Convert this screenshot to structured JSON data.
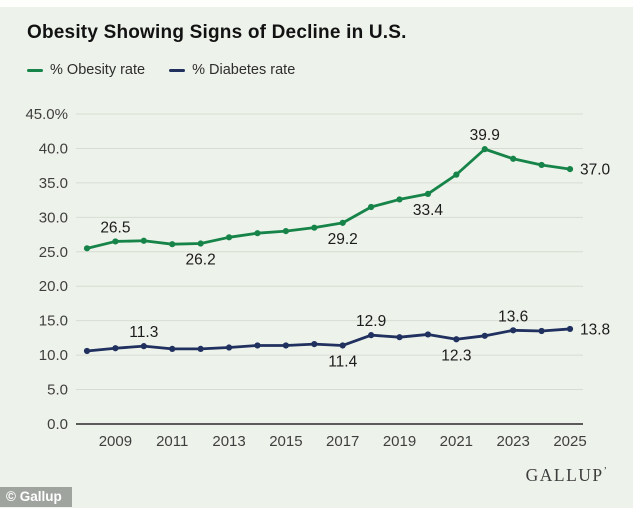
{
  "title": "Obesity Showing Signs of Decline in U.S.",
  "legend": {
    "items": [
      {
        "label": "% Obesity rate",
        "color": "#168449"
      },
      {
        "label": "% Diabetes rate",
        "color": "#20305f"
      }
    ]
  },
  "footer": {
    "wordmark": "GALLUP",
    "wordmark_tick": "’",
    "credit": "© Gallup"
  },
  "colors": {
    "background": "#edf2ea",
    "grid": "#d8ddd3",
    "baseline": "#2b2b2b",
    "axis_text": "#3f3f3f",
    "label_text": "#1c1c1c",
    "obesity_green": "#168449",
    "diabetes_navy": "#20305f"
  },
  "chart_data": {
    "type": "line",
    "title": "Obesity Showing Signs of Decline in U.S.",
    "xlabel": "",
    "ylabel": "",
    "grid": true,
    "legend_position": "top-left",
    "marker": "circle",
    "ylim": [
      0,
      45
    ],
    "x": [
      2008,
      2009,
      2010,
      2011,
      2012,
      2013,
      2014,
      2015,
      2016,
      2017,
      2018,
      2019,
      2020,
      2021,
      2022,
      2023,
      2024,
      2025
    ],
    "x_ticks": [
      2009,
      2011,
      2013,
      2015,
      2017,
      2019,
      2021,
      2023,
      2025
    ],
    "y_ticks": [
      {
        "value": 45,
        "label": "45.0%"
      },
      {
        "value": 40,
        "label": "40.0"
      },
      {
        "value": 35,
        "label": "35.0"
      },
      {
        "value": 30,
        "label": "30.0"
      },
      {
        "value": 25,
        "label": "25.0"
      },
      {
        "value": 20,
        "label": "20.0"
      },
      {
        "value": 15,
        "label": "15.0"
      },
      {
        "value": 10,
        "label": "10.0"
      },
      {
        "value": 5,
        "label": "5.0"
      },
      {
        "value": 0,
        "label": "0.0"
      }
    ],
    "series": [
      {
        "name": "% Obesity rate",
        "color": "#168449",
        "values": [
          25.5,
          26.5,
          26.6,
          26.1,
          26.2,
          27.1,
          27.7,
          28.0,
          28.5,
          29.2,
          31.5,
          32.6,
          33.4,
          36.2,
          39.9,
          38.5,
          37.6,
          37.0
        ],
        "point_labels": [
          {
            "x": 2009,
            "text": "26.5",
            "position": "above"
          },
          {
            "x": 2012,
            "text": "26.2",
            "position": "below"
          },
          {
            "x": 2017,
            "text": "29.2",
            "position": "below"
          },
          {
            "x": 2020,
            "text": "33.4",
            "position": "below"
          },
          {
            "x": 2022,
            "text": "39.9",
            "position": "above"
          },
          {
            "x": 2025,
            "text": "37.0",
            "position": "right"
          }
        ]
      },
      {
        "name": "% Diabetes rate",
        "color": "#20305f",
        "values": [
          10.6,
          11.0,
          11.3,
          10.9,
          10.9,
          11.1,
          11.4,
          11.4,
          11.6,
          11.4,
          12.9,
          12.6,
          13.0,
          12.3,
          12.8,
          13.6,
          13.5,
          13.8
        ],
        "point_labels": [
          {
            "x": 2010,
            "text": "11.3",
            "position": "above"
          },
          {
            "x": 2017,
            "text": "11.4",
            "position": "below"
          },
          {
            "x": 2018,
            "text": "12.9",
            "position": "above"
          },
          {
            "x": 2021,
            "text": "12.3",
            "position": "below"
          },
          {
            "x": 2023,
            "text": "13.6",
            "position": "above"
          },
          {
            "x": 2025,
            "text": "13.8",
            "position": "right"
          }
        ]
      }
    ]
  }
}
